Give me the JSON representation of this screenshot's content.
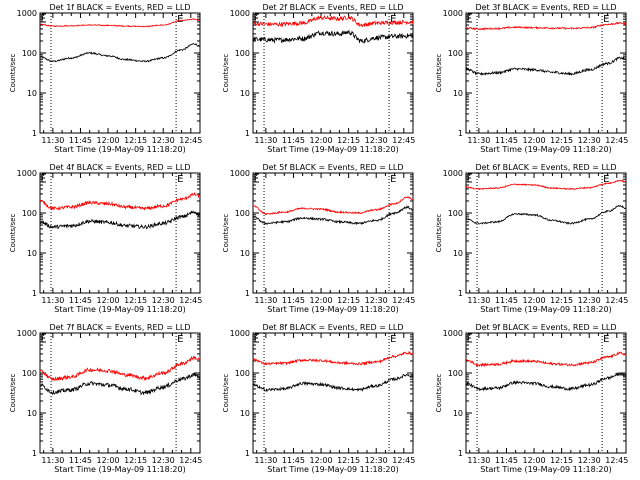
{
  "figure": {
    "background": "#ffffff",
    "colors": {
      "events": "#000000",
      "lld": "#ff0000",
      "axes": "#000000"
    }
  },
  "chart_data": [
    {
      "type": "line",
      "title": "Det 1f BLACK = Events, RED = LLD",
      "xlabel": "Start Time (19-May-09 11:18:20)",
      "ylabel": "Counts/sec",
      "yscale": "log",
      "ylim": [
        1,
        1000
      ],
      "xlim": [
        "11:23",
        "12:50"
      ],
      "x_ticks": [
        "11:30",
        "11:45",
        "12:00",
        "12:15",
        "12:30",
        "12:45"
      ],
      "y_ticks": [
        "1",
        "10",
        "100",
        "1000"
      ],
      "markers": [
        {
          "x": "11:29",
          "label": ""
        },
        {
          "x": "12:37",
          "label": "E"
        }
      ],
      "series": [
        {
          "name": "Events",
          "color": "black",
          "x": [
            "11:23",
            "11:30",
            "11:40",
            "11:50",
            "12:00",
            "12:10",
            "12:20",
            "12:30",
            "12:40",
            "12:47",
            "12:50"
          ],
          "values": [
            80,
            62,
            75,
            100,
            85,
            68,
            62,
            75,
            120,
            170,
            145
          ]
        },
        {
          "name": "LLD",
          "color": "red",
          "x": [
            "11:23",
            "11:30",
            "11:40",
            "11:50",
            "12:00",
            "12:10",
            "12:20",
            "12:30",
            "12:40",
            "12:47",
            "12:50"
          ],
          "values": [
            520,
            470,
            480,
            500,
            490,
            470,
            460,
            500,
            650,
            700,
            640
          ]
        }
      ],
      "noise": [
        0.02,
        0.012
      ]
    },
    {
      "type": "line",
      "title": "Det 2f BLACK = Events, RED = LLD",
      "xlabel": "Start Time (19-May-09 11:18:20)",
      "ylabel": "Counts/sec",
      "yscale": "log",
      "ylim": [
        1,
        1000
      ],
      "xlim": [
        "11:23",
        "12:50"
      ],
      "x_ticks": [
        "11:30",
        "11:45",
        "12:00",
        "12:15",
        "12:30",
        "12:45"
      ],
      "y_ticks": [
        "1",
        "10",
        "100",
        "1000"
      ],
      "markers": [
        {
          "x": "11:29",
          "label": ""
        },
        {
          "x": "12:37",
          "label": "E"
        }
      ],
      "series": [
        {
          "name": "Events",
          "color": "black",
          "x": [
            "11:23",
            "11:35",
            "11:50",
            "12:00",
            "12:10",
            "12:15",
            "12:22",
            "12:30",
            "12:40",
            "12:50"
          ],
          "values": [
            220,
            210,
            230,
            320,
            300,
            330,
            200,
            240,
            260,
            270
          ]
        },
        {
          "name": "LLD",
          "color": "red",
          "x": [
            "11:23",
            "11:35",
            "11:50",
            "12:00",
            "12:10",
            "12:15",
            "12:22",
            "12:30",
            "12:40",
            "12:50"
          ],
          "values": [
            540,
            520,
            560,
            760,
            720,
            780,
            500,
            560,
            580,
            600
          ]
        }
      ],
      "noise": [
        0.06,
        0.05
      ]
    },
    {
      "type": "line",
      "title": "Det 3f BLACK = Events, RED = LLD",
      "xlabel": "Start Time (19-May-09 11:18:20)",
      "ylabel": "Counts/sec",
      "yscale": "log",
      "ylim": [
        1,
        1000
      ],
      "xlim": [
        "11:23",
        "12:50"
      ],
      "x_ticks": [
        "11:30",
        "11:45",
        "12:00",
        "12:15",
        "12:30",
        "12:45"
      ],
      "y_ticks": [
        "1",
        "10",
        "100",
        "1000"
      ],
      "markers": [
        {
          "x": "11:29",
          "label": ""
        },
        {
          "x": "12:37",
          "label": "E"
        }
      ],
      "series": [
        {
          "name": "Events",
          "color": "black",
          "x": [
            "11:23",
            "11:30",
            "11:40",
            "11:50",
            "12:00",
            "12:10",
            "12:20",
            "12:30",
            "12:40",
            "12:47",
            "12:50"
          ],
          "values": [
            40,
            30,
            32,
            40,
            38,
            33,
            30,
            38,
            55,
            75,
            70
          ]
        },
        {
          "name": "LLD",
          "color": "red",
          "x": [
            "11:23",
            "11:30",
            "11:40",
            "11:50",
            "12:00",
            "12:10",
            "12:20",
            "12:30",
            "12:40",
            "12:47",
            "12:50"
          ],
          "values": [
            420,
            400,
            410,
            440,
            430,
            420,
            410,
            430,
            520,
            560,
            540
          ]
        }
      ],
      "noise": [
        0.03,
        0.02
      ]
    },
    {
      "type": "line",
      "title": "Det 4f BLACK = Events, RED = LLD",
      "xlabel": "Start Time (19-May-09 11:18:20)",
      "ylabel": "Counts/sec",
      "yscale": "log",
      "ylim": [
        1,
        1000
      ],
      "xlim": [
        "11:23",
        "12:50"
      ],
      "x_ticks": [
        "11:30",
        "11:45",
        "12:00",
        "12:15",
        "12:30",
        "12:45"
      ],
      "y_ticks": [
        "1",
        "10",
        "100",
        "1000"
      ],
      "markers": [
        {
          "x": "11:29",
          "label": ""
        },
        {
          "x": "12:37",
          "label": "E"
        }
      ],
      "series": [
        {
          "name": "Events",
          "color": "black",
          "x": [
            "11:23",
            "11:30",
            "11:40",
            "11:50",
            "12:00",
            "12:10",
            "12:20",
            "12:30",
            "12:40",
            "12:47",
            "12:50"
          ],
          "values": [
            60,
            45,
            48,
            62,
            58,
            48,
            45,
            55,
            80,
            105,
            90
          ]
        },
        {
          "name": "LLD",
          "color": "red",
          "x": [
            "11:23",
            "11:30",
            "11:40",
            "11:50",
            "12:00",
            "12:10",
            "12:20",
            "12:30",
            "12:40",
            "12:47",
            "12:50"
          ],
          "values": [
            200,
            130,
            140,
            180,
            170,
            140,
            130,
            150,
            220,
            290,
            260
          ]
        }
      ],
      "noise": [
        0.045,
        0.04
      ]
    },
    {
      "type": "line",
      "title": "Det 5f BLACK = Events, RED = LLD",
      "xlabel": "Start Time (19-May-09 11:18:20)",
      "ylabel": "Counts/sec",
      "yscale": "log",
      "ylim": [
        1,
        1000
      ],
      "xlim": [
        "11:23",
        "12:50"
      ],
      "x_ticks": [
        "11:30",
        "11:45",
        "12:00",
        "12:15",
        "12:30",
        "12:45"
      ],
      "y_ticks": [
        "1",
        "10",
        "100",
        "1000"
      ],
      "markers": [
        {
          "x": "11:29",
          "label": ""
        },
        {
          "x": "12:37",
          "label": "E"
        }
      ],
      "series": [
        {
          "name": "Events",
          "color": "black",
          "x": [
            "11:23",
            "11:30",
            "11:40",
            "11:50",
            "12:00",
            "12:10",
            "12:20",
            "12:30",
            "12:40",
            "12:47",
            "12:50"
          ],
          "values": [
            80,
            55,
            60,
            75,
            70,
            60,
            55,
            65,
            100,
            140,
            120
          ]
        },
        {
          "name": "LLD",
          "color": "red",
          "x": [
            "11:23",
            "11:30",
            "11:40",
            "11:50",
            "12:00",
            "12:10",
            "12:20",
            "12:30",
            "12:40",
            "12:47",
            "12:50"
          ],
          "values": [
            150,
            95,
            105,
            130,
            125,
            105,
            100,
            120,
            170,
            250,
            220
          ]
        }
      ],
      "noise": [
        0.025,
        0.02
      ]
    },
    {
      "type": "line",
      "title": "Det 6f BLACK = Events, RED = LLD",
      "xlabel": "Start Time (19-May-09 11:18:20)",
      "ylabel": "Counts/sec",
      "yscale": "log",
      "ylim": [
        1,
        1000
      ],
      "xlim": [
        "11:23",
        "12:50"
      ],
      "x_ticks": [
        "11:30",
        "11:45",
        "12:00",
        "12:15",
        "12:30",
        "12:45"
      ],
      "y_ticks": [
        "1",
        "10",
        "100",
        "1000"
      ],
      "markers": [
        {
          "x": "11:29",
          "label": ""
        },
        {
          "x": "12:37",
          "label": "E"
        }
      ],
      "series": [
        {
          "name": "Events",
          "color": "black",
          "x": [
            "11:23",
            "11:30",
            "11:40",
            "11:50",
            "12:00",
            "12:10",
            "12:20",
            "12:30",
            "12:40",
            "12:47",
            "12:50"
          ],
          "values": [
            70,
            55,
            60,
            95,
            90,
            65,
            55,
            70,
            110,
            150,
            130
          ]
        },
        {
          "name": "LLD",
          "color": "red",
          "x": [
            "11:23",
            "11:30",
            "11:40",
            "11:50",
            "12:00",
            "12:10",
            "12:20",
            "12:30",
            "12:40",
            "12:47",
            "12:50"
          ],
          "values": [
            440,
            400,
            420,
            520,
            500,
            420,
            400,
            430,
            550,
            650,
            600
          ]
        }
      ],
      "noise": [
        0.02,
        0.015
      ]
    },
    {
      "type": "line",
      "title": "Det 7f BLACK = Events, RED = LLD",
      "xlabel": "Start Time (19-May-09 11:18:20)",
      "ylabel": "Counts/sec",
      "yscale": "log",
      "ylim": [
        1,
        1000
      ],
      "xlim": [
        "11:23",
        "12:50"
      ],
      "x_ticks": [
        "11:30",
        "11:45",
        "12:00",
        "12:15",
        "12:30",
        "12:45"
      ],
      "y_ticks": [
        "1",
        "10",
        "100",
        "1000"
      ],
      "markers": [
        {
          "x": "11:29",
          "label": ""
        },
        {
          "x": "12:37",
          "label": "E"
        }
      ],
      "series": [
        {
          "name": "Events",
          "color": "black",
          "x": [
            "11:23",
            "11:30",
            "11:40",
            "11:50",
            "12:00",
            "12:10",
            "12:20",
            "12:30",
            "12:40",
            "12:47",
            "12:50"
          ],
          "values": [
            50,
            33,
            38,
            55,
            50,
            40,
            32,
            45,
            70,
            90,
            80
          ]
        },
        {
          "name": "LLD",
          "color": "red",
          "x": [
            "11:23",
            "11:30",
            "11:40",
            "11:50",
            "12:00",
            "12:10",
            "12:20",
            "12:30",
            "12:40",
            "12:47",
            "12:50"
          ],
          "values": [
            110,
            70,
            80,
            120,
            115,
            90,
            75,
            100,
            170,
            240,
            210
          ]
        }
      ],
      "noise": [
        0.05,
        0.045
      ]
    },
    {
      "type": "line",
      "title": "Det 8f BLACK = Events, RED = LLD",
      "xlabel": "Start Time (19-May-09 11:18:20)",
      "ylabel": "Counts/sec",
      "yscale": "log",
      "ylim": [
        1,
        1000
      ],
      "xlim": [
        "11:23",
        "12:50"
      ],
      "x_ticks": [
        "11:30",
        "11:45",
        "12:00",
        "12:15",
        "12:30",
        "12:45"
      ],
      "y_ticks": [
        "1",
        "10",
        "100",
        "1000"
      ],
      "markers": [
        {
          "x": "11:29",
          "label": ""
        },
        {
          "x": "12:37",
          "label": "E"
        }
      ],
      "series": [
        {
          "name": "Events",
          "color": "black",
          "x": [
            "11:23",
            "11:30",
            "11:40",
            "11:50",
            "12:00",
            "12:10",
            "12:20",
            "12:30",
            "12:40",
            "12:47",
            "12:50"
          ],
          "values": [
            50,
            38,
            40,
            55,
            52,
            42,
            38,
            48,
            70,
            90,
            80
          ]
        },
        {
          "name": "LLD",
          "color": "red",
          "x": [
            "11:23",
            "11:30",
            "11:40",
            "11:50",
            "12:00",
            "12:10",
            "12:20",
            "12:30",
            "12:40",
            "12:47",
            "12:50"
          ],
          "values": [
            220,
            170,
            175,
            210,
            205,
            180,
            170,
            190,
            260,
            320,
            300
          ]
        }
      ],
      "noise": [
        0.035,
        0.03
      ]
    },
    {
      "type": "line",
      "title": "Det 9f BLACK = Events, RED = LLD",
      "xlabel": "Start Time (19-May-09 11:18:20)",
      "ylabel": "Counts/sec",
      "yscale": "log",
      "ylim": [
        1,
        1000
      ],
      "xlim": [
        "11:23",
        "12:50"
      ],
      "x_ticks": [
        "11:30",
        "11:45",
        "12:00",
        "12:15",
        "12:30",
        "12:45"
      ],
      "y_ticks": [
        "1",
        "10",
        "100",
        "1000"
      ],
      "markers": [
        {
          "x": "11:29",
          "label": ""
        },
        {
          "x": "12:37",
          "label": "E"
        }
      ],
      "series": [
        {
          "name": "Events",
          "color": "black",
          "x": [
            "11:23",
            "11:30",
            "11:40",
            "11:50",
            "12:00",
            "12:10",
            "12:20",
            "12:30",
            "12:40",
            "12:47",
            "12:50"
          ],
          "values": [
            55,
            40,
            42,
            58,
            55,
            45,
            40,
            50,
            75,
            95,
            85
          ]
        },
        {
          "name": "LLD",
          "color": "red",
          "x": [
            "11:23",
            "11:30",
            "11:40",
            "11:50",
            "12:00",
            "12:10",
            "12:20",
            "12:30",
            "12:40",
            "12:47",
            "12:50"
          ],
          "values": [
            210,
            160,
            165,
            200,
            195,
            170,
            160,
            180,
            250,
            310,
            290
          ]
        }
      ],
      "noise": [
        0.035,
        0.03
      ]
    }
  ]
}
